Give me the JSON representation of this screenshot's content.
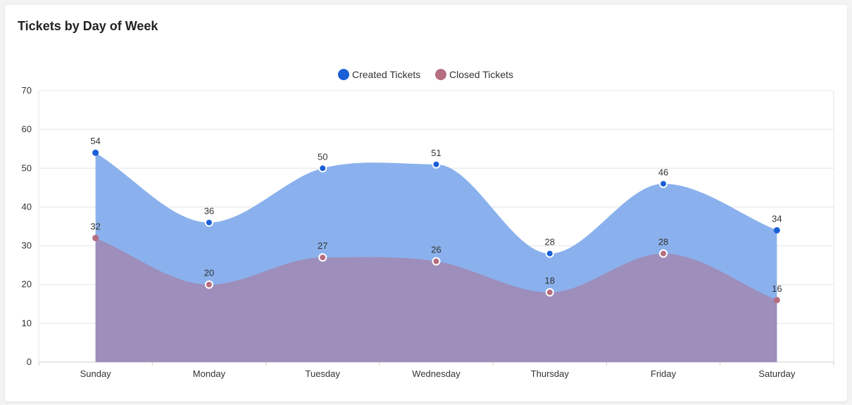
{
  "page": {
    "title": "Tickets by Day of Week"
  },
  "chart_data": {
    "type": "area",
    "title": "Tickets by Day of Week",
    "categories": [
      "Sunday",
      "Monday",
      "Tuesday",
      "Wednesday",
      "Thursday",
      "Friday",
      "Saturday"
    ],
    "series": [
      {
        "name": "Created Tickets",
        "values": [
          54,
          36,
          50,
          51,
          28,
          46,
          34
        ],
        "color": "#1a5fd6",
        "fill": "#86aeec"
      },
      {
        "name": "Closed Tickets",
        "values": [
          32,
          20,
          27,
          26,
          18,
          28,
          16
        ],
        "color": "#b56d80",
        "fill": "#9e8bb6"
      }
    ],
    "ylim": [
      0,
      70
    ],
    "yticks": [
      0,
      10,
      20,
      30,
      40,
      50,
      60,
      70
    ],
    "grid": true,
    "smooth": true,
    "data_labels": true,
    "legend": "top-center"
  }
}
